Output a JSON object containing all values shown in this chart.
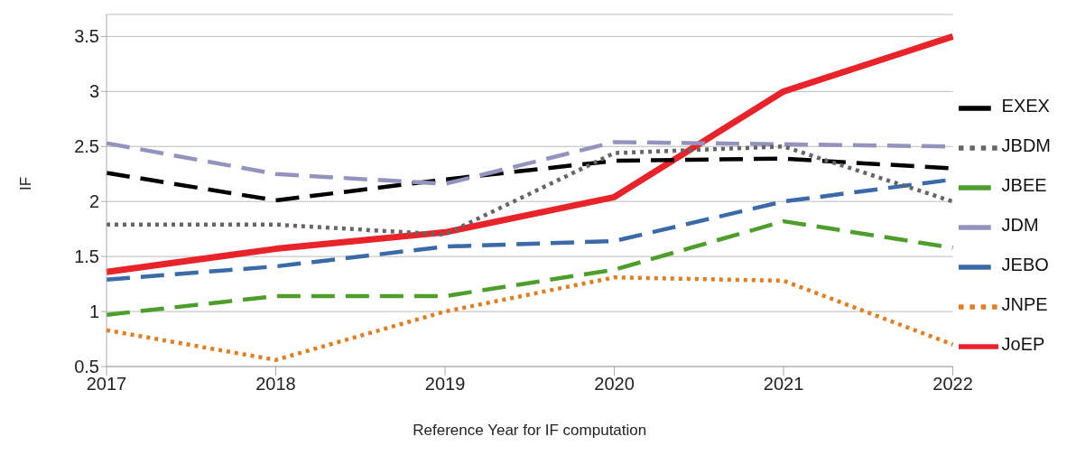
{
  "chart_data": {
    "type": "line",
    "xlabel": "Reference Year for IF computation",
    "ylabel": "IF",
    "categories": [
      "2017",
      "2018",
      "2019",
      "2020",
      "2021",
      "2022"
    ],
    "ylim": [
      0.5,
      3.7
    ],
    "yticks": [
      0.5,
      1,
      1.5,
      2,
      2.5,
      3,
      3.5
    ],
    "grid": "y",
    "legend": "right",
    "marker": "none",
    "series": [
      {
        "name": "JoEP",
        "color": "#e8232a",
        "line_style": "solid",
        "values": [
          1.36,
          1.57,
          1.72,
          2.04,
          3.0,
          3.5
        ]
      },
      {
        "name": "EXEX",
        "color": "#000000",
        "line_style": "dashed",
        "values": [
          2.26,
          2.01,
          2.2,
          2.37,
          2.39,
          2.3
        ]
      },
      {
        "name": "JEBO",
        "color": "#3a6aa8",
        "line_style": "dashed",
        "values": [
          1.29,
          1.41,
          1.59,
          1.64,
          2.0,
          2.2
        ]
      },
      {
        "name": "JBEE",
        "color": "#4d9e2a",
        "line_style": "dashed",
        "values": [
          0.97,
          1.14,
          1.14,
          1.38,
          1.82,
          1.58
        ]
      },
      {
        "name": "JNPE",
        "color": "#e07e22",
        "line_style": "dotted",
        "values": [
          0.83,
          0.56,
          1.0,
          1.31,
          1.28,
          0.7
        ]
      },
      {
        "name": "JDM",
        "color": "#9393bd",
        "line_style": "dashed",
        "values": [
          2.53,
          2.25,
          2.16,
          2.54,
          2.52,
          2.5
        ]
      },
      {
        "name": "JBDM",
        "color": "#666666",
        "line_style": "dotted",
        "values": [
          1.79,
          1.79,
          1.7,
          2.44,
          2.5,
          2.0
        ]
      }
    ]
  }
}
